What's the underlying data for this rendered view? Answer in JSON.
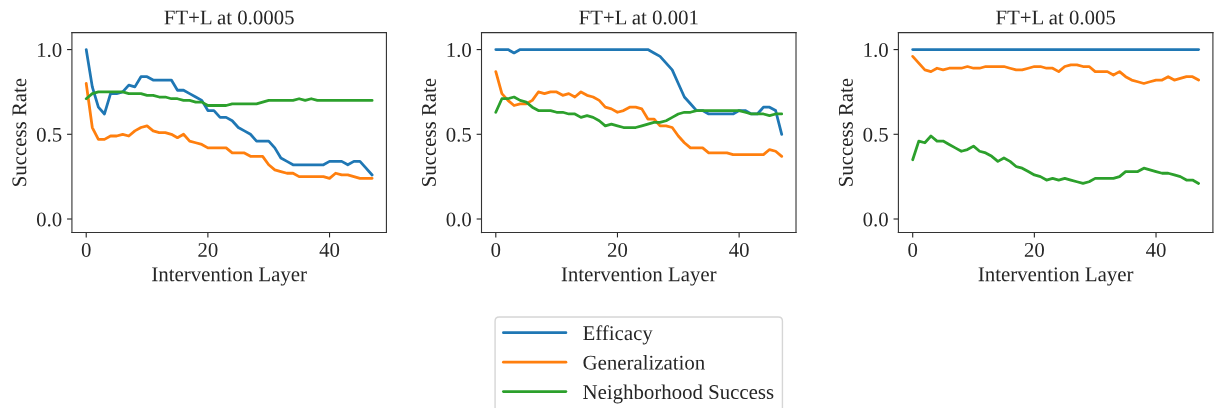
{
  "chart_data": [
    {
      "type": "line",
      "title": "FT+L at 0.0005",
      "xlabel": "Intervention Layer",
      "ylabel": "Success Rate",
      "xlim": [
        -2.35,
        49.35
      ],
      "ylim": [
        -0.08,
        1.1
      ],
      "xticks": [
        0,
        20,
        40
      ],
      "yticks": [
        {
          "value": 0,
          "label": "0.0"
        },
        {
          "value": 0.5,
          "label": "0.5"
        },
        {
          "value": 1,
          "label": "1.0"
        }
      ],
      "grid": false,
      "legend": false,
      "x": [
        0,
        1,
        2,
        3,
        4,
        5,
        6,
        7,
        8,
        9,
        10,
        11,
        12,
        13,
        14,
        15,
        16,
        17,
        18,
        19,
        20,
        21,
        22,
        23,
        24,
        25,
        26,
        27,
        28,
        29,
        30,
        31,
        32,
        33,
        34,
        35,
        36,
        37,
        38,
        39,
        40,
        41,
        42,
        43,
        44,
        45,
        46,
        47
      ],
      "series": [
        {
          "color": "#1f77b4",
          "values": [
            1.0,
            0.78,
            0.66,
            0.62,
            0.74,
            0.74,
            0.75,
            0.79,
            0.78,
            0.84,
            0.84,
            0.82,
            0.82,
            0.82,
            0.82,
            0.76,
            0.76,
            0.74,
            0.72,
            0.7,
            0.64,
            0.64,
            0.6,
            0.6,
            0.58,
            0.54,
            0.52,
            0.5,
            0.46,
            0.46,
            0.46,
            0.42,
            0.36,
            0.34,
            0.32,
            0.32,
            0.32,
            0.32,
            0.32,
            0.32,
            0.34,
            0.34,
            0.34,
            0.32,
            0.34,
            0.34,
            0.3,
            0.26
          ]
        },
        {
          "color": "#ff7f0e",
          "values": [
            0.8,
            0.54,
            0.47,
            0.47,
            0.49,
            0.49,
            0.5,
            0.49,
            0.52,
            0.54,
            0.55,
            0.52,
            0.51,
            0.51,
            0.5,
            0.48,
            0.5,
            0.46,
            0.45,
            0.44,
            0.42,
            0.42,
            0.42,
            0.42,
            0.39,
            0.39,
            0.39,
            0.37,
            0.37,
            0.37,
            0.32,
            0.29,
            0.28,
            0.27,
            0.27,
            0.25,
            0.25,
            0.25,
            0.25,
            0.25,
            0.24,
            0.27,
            0.26,
            0.26,
            0.25,
            0.24,
            0.24,
            0.24
          ]
        },
        {
          "color": "#2ca02c",
          "values": [
            0.71,
            0.74,
            0.75,
            0.75,
            0.75,
            0.75,
            0.75,
            0.74,
            0.74,
            0.74,
            0.73,
            0.73,
            0.72,
            0.72,
            0.71,
            0.71,
            0.7,
            0.7,
            0.69,
            0.69,
            0.67,
            0.67,
            0.67,
            0.67,
            0.68,
            0.68,
            0.68,
            0.68,
            0.68,
            0.69,
            0.7,
            0.7,
            0.7,
            0.7,
            0.7,
            0.71,
            0.7,
            0.71,
            0.7,
            0.7,
            0.7,
            0.7,
            0.7,
            0.7,
            0.7,
            0.7,
            0.7,
            0.7
          ]
        }
      ]
    },
    {
      "type": "line",
      "title": "FT+L at 0.001",
      "xlabel": "Intervention Layer",
      "ylabel": "Success Rate",
      "xlim": [
        -2.35,
        49.35
      ],
      "ylim": [
        -0.08,
        1.1
      ],
      "xticks": [
        0,
        20,
        40
      ],
      "yticks": [
        {
          "value": 0,
          "label": "0.0"
        },
        {
          "value": 0.5,
          "label": "0.5"
        },
        {
          "value": 1,
          "label": "1.0"
        }
      ],
      "grid": false,
      "legend": "bottom",
      "x": [
        0,
        1,
        2,
        3,
        4,
        5,
        6,
        7,
        8,
        9,
        10,
        11,
        12,
        13,
        14,
        15,
        16,
        17,
        18,
        19,
        20,
        21,
        22,
        23,
        24,
        25,
        26,
        27,
        28,
        29,
        30,
        31,
        32,
        33,
        34,
        35,
        36,
        37,
        38,
        39,
        40,
        41,
        42,
        43,
        44,
        45,
        46,
        47
      ],
      "series": [
        {
          "name": "Efficacy",
          "color": "#1f77b4",
          "values": [
            1.0,
            1.0,
            1.0,
            0.98,
            1.0,
            1.0,
            1.0,
            1.0,
            1.0,
            1.0,
            1.0,
            1.0,
            1.0,
            1.0,
            1.0,
            1.0,
            1.0,
            1.0,
            1.0,
            1.0,
            1.0,
            1.0,
            1.0,
            1.0,
            1.0,
            1.0,
            0.98,
            0.96,
            0.92,
            0.88,
            0.8,
            0.72,
            0.68,
            0.64,
            0.64,
            0.62,
            0.62,
            0.62,
            0.62,
            0.62,
            0.64,
            0.64,
            0.62,
            0.62,
            0.66,
            0.66,
            0.64,
            0.5
          ]
        },
        {
          "name": "Generalization",
          "color": "#ff7f0e",
          "values": [
            0.87,
            0.74,
            0.7,
            0.67,
            0.68,
            0.68,
            0.7,
            0.75,
            0.74,
            0.75,
            0.75,
            0.73,
            0.74,
            0.72,
            0.75,
            0.73,
            0.72,
            0.7,
            0.66,
            0.65,
            0.63,
            0.64,
            0.66,
            0.66,
            0.65,
            0.59,
            0.59,
            0.55,
            0.55,
            0.54,
            0.49,
            0.45,
            0.42,
            0.42,
            0.42,
            0.39,
            0.39,
            0.39,
            0.39,
            0.38,
            0.38,
            0.38,
            0.38,
            0.38,
            0.38,
            0.41,
            0.4,
            0.37
          ]
        },
        {
          "name": "Neighborhood Success",
          "color": "#2ca02c",
          "values": [
            0.63,
            0.71,
            0.71,
            0.72,
            0.7,
            0.69,
            0.66,
            0.64,
            0.64,
            0.64,
            0.63,
            0.63,
            0.62,
            0.62,
            0.6,
            0.61,
            0.6,
            0.58,
            0.55,
            0.56,
            0.55,
            0.54,
            0.54,
            0.54,
            0.55,
            0.56,
            0.57,
            0.57,
            0.58,
            0.6,
            0.62,
            0.63,
            0.63,
            0.64,
            0.64,
            0.64,
            0.64,
            0.64,
            0.64,
            0.64,
            0.64,
            0.63,
            0.62,
            0.62,
            0.62,
            0.61,
            0.62,
            0.62
          ]
        }
      ]
    },
    {
      "type": "line",
      "title": "FT+L at 0.005",
      "xlabel": "Intervention Layer",
      "ylabel": "Success Rate",
      "xlim": [
        -2.35,
        49.35
      ],
      "ylim": [
        -0.08,
        1.1
      ],
      "xticks": [
        0,
        20,
        40
      ],
      "yticks": [
        {
          "value": 0,
          "label": "0.0"
        },
        {
          "value": 0.5,
          "label": "0.5"
        },
        {
          "value": 1,
          "label": "1.0"
        }
      ],
      "grid": false,
      "legend": false,
      "x": [
        0,
        1,
        2,
        3,
        4,
        5,
        6,
        7,
        8,
        9,
        10,
        11,
        12,
        13,
        14,
        15,
        16,
        17,
        18,
        19,
        20,
        21,
        22,
        23,
        24,
        25,
        26,
        27,
        28,
        29,
        30,
        31,
        32,
        33,
        34,
        35,
        36,
        37,
        38,
        39,
        40,
        41,
        42,
        43,
        44,
        45,
        46,
        47
      ],
      "series": [
        {
          "color": "#1f77b4",
          "values": [
            1.0,
            1.0,
            1.0,
            1.0,
            1.0,
            1.0,
            1.0,
            1.0,
            1.0,
            1.0,
            1.0,
            1.0,
            1.0,
            1.0,
            1.0,
            1.0,
            1.0,
            1.0,
            1.0,
            1.0,
            1.0,
            1.0,
            1.0,
            1.0,
            1.0,
            1.0,
            1.0,
            1.0,
            1.0,
            1.0,
            1.0,
            1.0,
            1.0,
            1.0,
            1.0,
            1.0,
            1.0,
            1.0,
            1.0,
            1.0,
            1.0,
            1.0,
            1.0,
            1.0,
            1.0,
            1.0,
            1.0,
            1.0
          ]
        },
        {
          "color": "#ff7f0e",
          "values": [
            0.96,
            0.92,
            0.88,
            0.87,
            0.89,
            0.88,
            0.89,
            0.89,
            0.89,
            0.9,
            0.89,
            0.89,
            0.9,
            0.9,
            0.9,
            0.9,
            0.89,
            0.88,
            0.88,
            0.89,
            0.9,
            0.9,
            0.89,
            0.89,
            0.87,
            0.9,
            0.91,
            0.91,
            0.9,
            0.9,
            0.87,
            0.87,
            0.87,
            0.85,
            0.87,
            0.84,
            0.82,
            0.81,
            0.8,
            0.81,
            0.82,
            0.82,
            0.84,
            0.82,
            0.83,
            0.84,
            0.84,
            0.82
          ]
        },
        {
          "color": "#2ca02c",
          "values": [
            0.35,
            0.46,
            0.45,
            0.49,
            0.46,
            0.46,
            0.44,
            0.42,
            0.4,
            0.41,
            0.43,
            0.4,
            0.39,
            0.37,
            0.34,
            0.36,
            0.34,
            0.31,
            0.3,
            0.28,
            0.26,
            0.25,
            0.23,
            0.24,
            0.23,
            0.24,
            0.23,
            0.22,
            0.21,
            0.22,
            0.24,
            0.24,
            0.24,
            0.24,
            0.25,
            0.28,
            0.28,
            0.28,
            0.3,
            0.29,
            0.28,
            0.27,
            0.27,
            0.26,
            0.25,
            0.23,
            0.23,
            0.21
          ]
        }
      ]
    }
  ]
}
